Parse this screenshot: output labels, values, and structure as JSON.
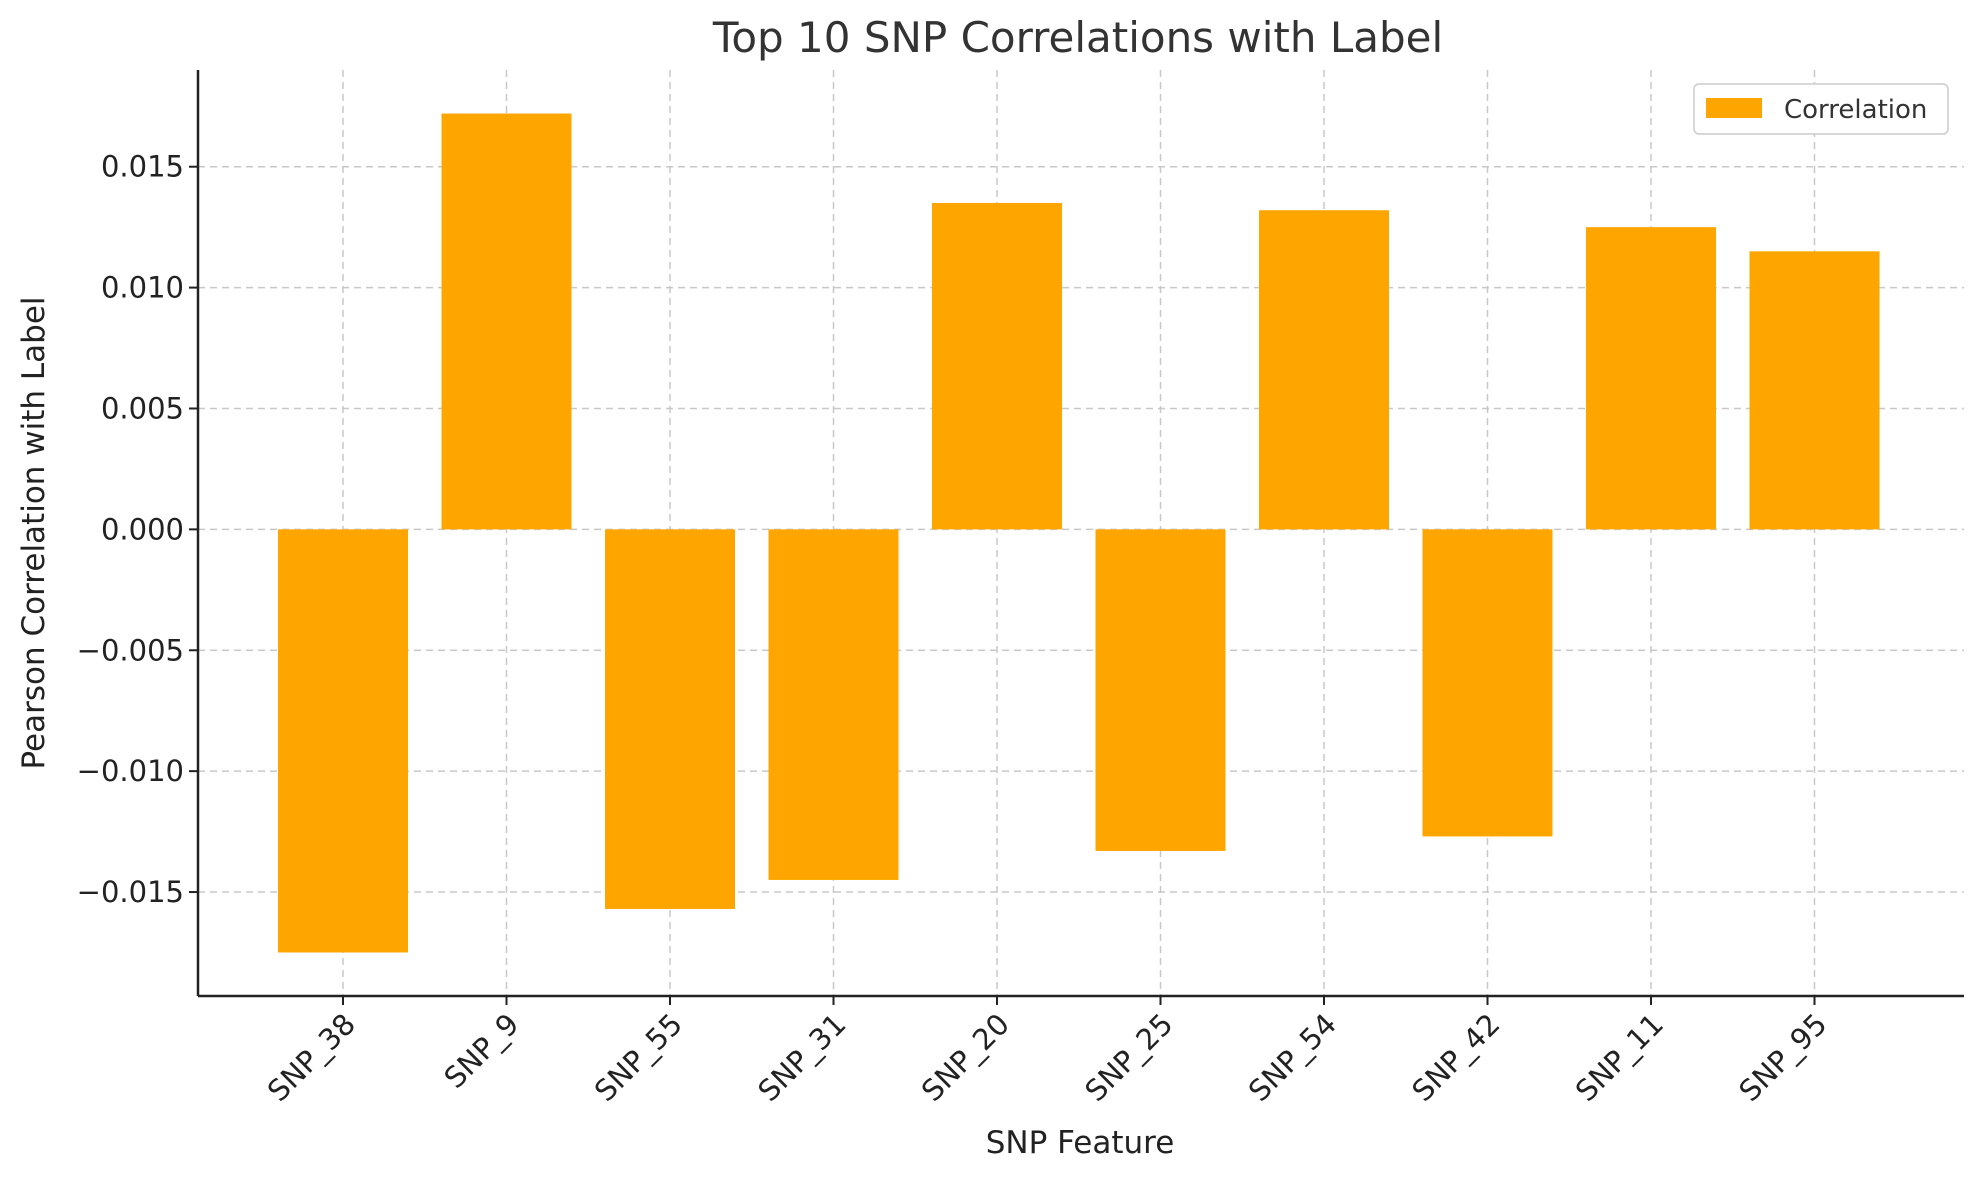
{
  "chart_data": {
    "type": "bar",
    "title": "Top 10 SNP Correlations with Label",
    "xlabel": "SNP Feature",
    "ylabel": "Pearson Correlation with Label",
    "categories": [
      "SNP_38",
      "SNP_9",
      "SNP_55",
      "SNP_31",
      "SNP_20",
      "SNP_25",
      "SNP_54",
      "SNP_42",
      "SNP_11",
      "SNP_95"
    ],
    "series": [
      {
        "name": "Correlation",
        "color": "#FFA500",
        "values": [
          -0.0175,
          0.0172,
          -0.0157,
          -0.0145,
          0.0135,
          -0.0133,
          0.0132,
          -0.0127,
          0.0125,
          0.0115
        ]
      }
    ],
    "ylim": [
      -0.0193,
      0.019
    ],
    "yticks": [
      -0.015,
      -0.01,
      -0.005,
      0.0,
      0.005,
      0.01,
      0.015
    ],
    "ytick_labels": [
      "−0.015",
      "−0.010",
      "−0.005",
      "0.000",
      "0.005",
      "0.010",
      "0.015"
    ],
    "grid": true,
    "legend_position": "top-right"
  }
}
